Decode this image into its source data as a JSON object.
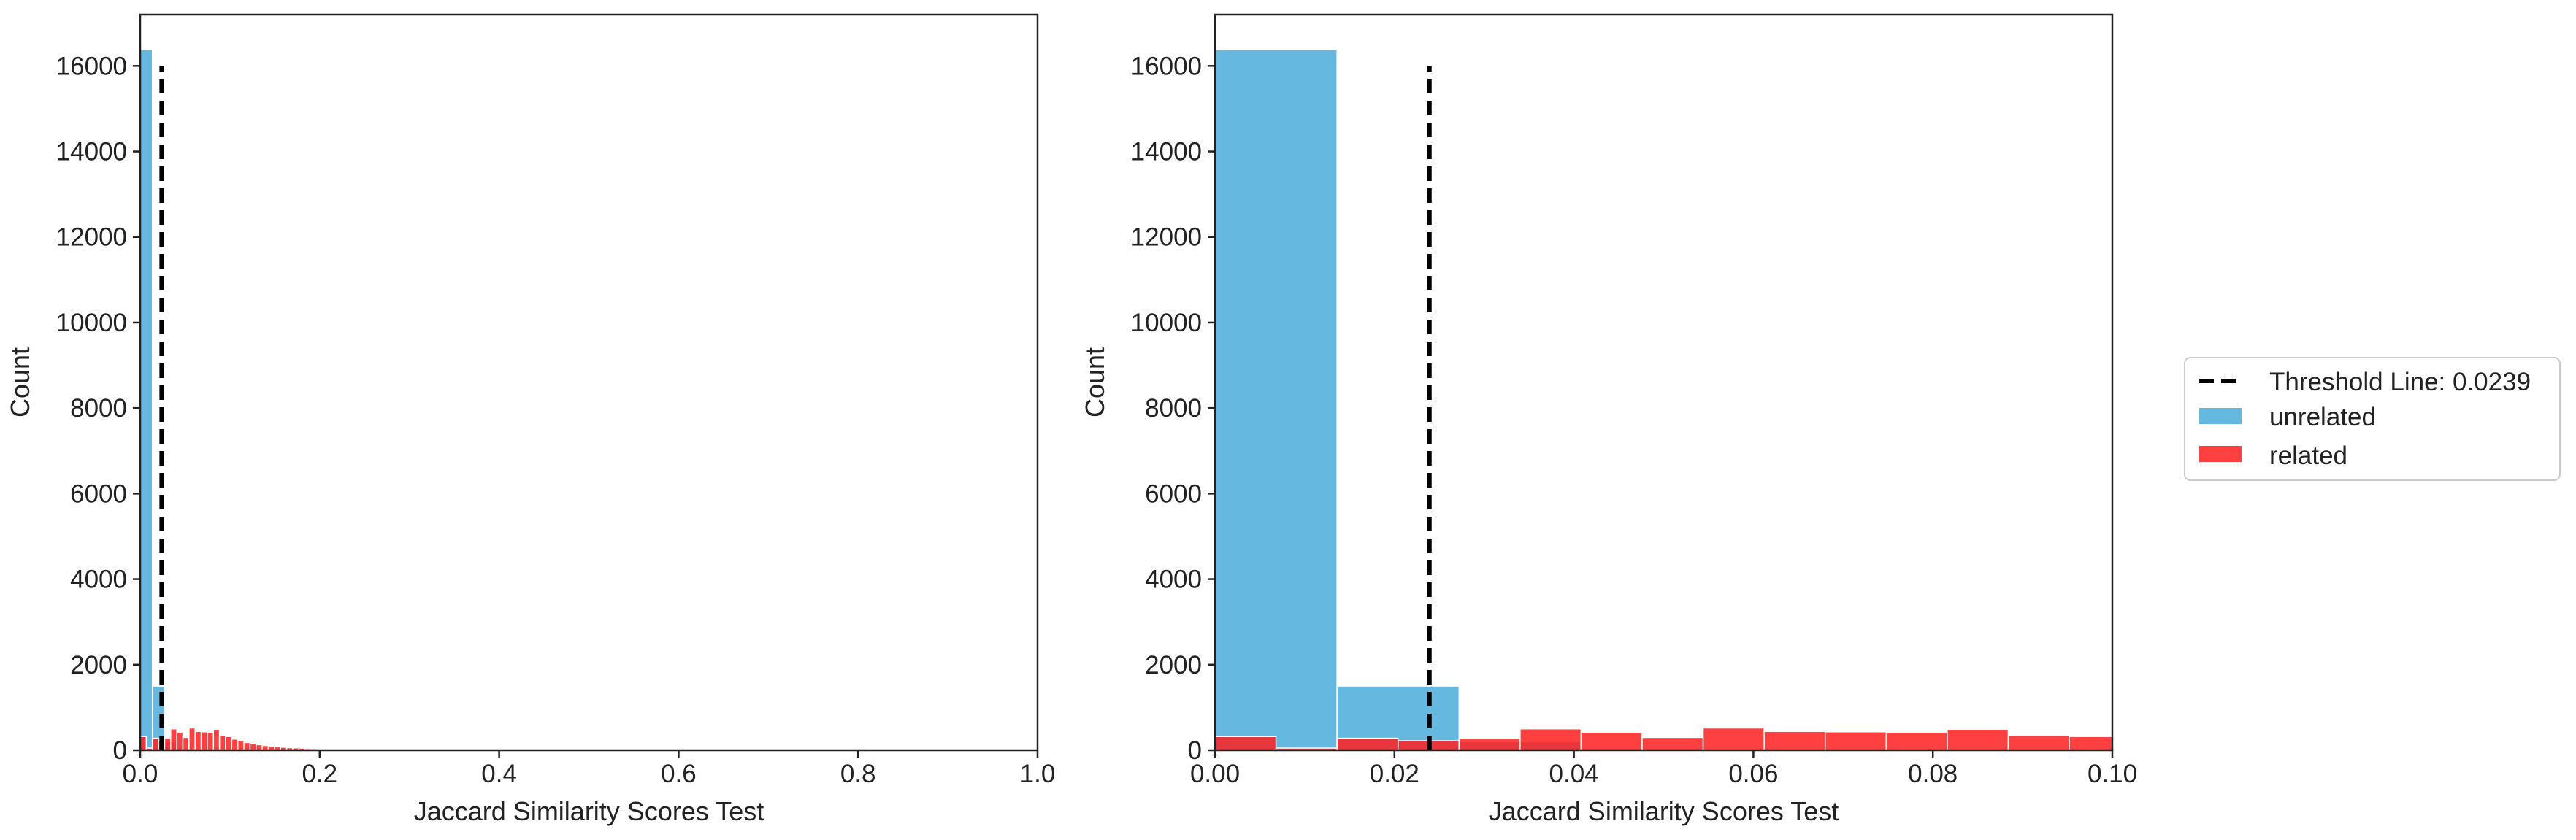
{
  "chart_data": [
    {
      "type": "histogram",
      "xlabel": "Jaccard Similarity Scores Test",
      "ylabel": "Count",
      "xlim": [
        0,
        1
      ],
      "ylim": [
        0,
        17200
      ],
      "xticks": [
        0.0,
        0.2,
        0.4,
        0.6,
        0.8,
        1.0
      ],
      "xtick_labels": [
        "0.0",
        "0.2",
        "0.4",
        "0.6",
        "0.8",
        "1.0"
      ],
      "yticks": [
        0,
        2000,
        4000,
        6000,
        8000,
        10000,
        12000,
        14000,
        16000
      ],
      "ytick_labels": [
        "0",
        "2000",
        "4000",
        "6000",
        "8000",
        "10000",
        "12000",
        "14000",
        "16000"
      ],
      "threshold": {
        "x": 0.0239,
        "y_top": 16000,
        "label": "Threshold Line: 0.0239"
      },
      "series": [
        {
          "name": "unrelated",
          "color": "#4aabdb",
          "bin_start": 0.0,
          "bin_width": 0.0136,
          "values": [
            16380,
            1500,
            200,
            40,
            10,
            5
          ]
        },
        {
          "name": "related",
          "color": "#ff1f1f",
          "bin_start": 0.0,
          "bin_width": 0.0068,
          "values": [
            320,
            50,
            280,
            220,
            280,
            500,
            420,
            300,
            520,
            440,
            430,
            420,
            490,
            350,
            320,
            260,
            230,
            180,
            160,
            130,
            110,
            90,
            80,
            70,
            60,
            55,
            50,
            40,
            35,
            30,
            25,
            20,
            18,
            16,
            14,
            12,
            10,
            10,
            8,
            8,
            6,
            6,
            5,
            5,
            4,
            4,
            3,
            3,
            2,
            2
          ]
        }
      ]
    },
    {
      "type": "histogram",
      "xlabel": "Jaccard Similarity Scores Test",
      "ylabel": "Count",
      "xlim": [
        0,
        0.1
      ],
      "ylim": [
        0,
        17200
      ],
      "xticks": [
        0.0,
        0.02,
        0.04,
        0.06,
        0.08,
        0.1
      ],
      "xtick_labels": [
        "0.00",
        "0.02",
        "0.04",
        "0.06",
        "0.08",
        "0.10"
      ],
      "yticks": [
        0,
        2000,
        4000,
        6000,
        8000,
        10000,
        12000,
        14000,
        16000
      ],
      "ytick_labels": [
        "0",
        "2000",
        "4000",
        "6000",
        "8000",
        "10000",
        "12000",
        "14000",
        "16000"
      ],
      "threshold": {
        "x": 0.0239,
        "y_top": 16000,
        "label": "Threshold Line: 0.0239"
      },
      "series": [
        {
          "name": "unrelated",
          "color": "#4aabdb",
          "bin_start": 0.0,
          "bin_width": 0.0136,
          "values": [
            16380,
            1500,
            200,
            40,
            10,
            5
          ]
        },
        {
          "name": "related",
          "color": "#ff1f1f",
          "bin_start": 0.0,
          "bin_width": 0.0068,
          "values": [
            320,
            50,
            280,
            220,
            280,
            500,
            420,
            300,
            520,
            440,
            430,
            420,
            490,
            350,
            320
          ]
        }
      ]
    }
  ],
  "legend": {
    "position": "right",
    "items": [
      {
        "label": "Threshold Line: 0.0239",
        "kind": "dashed-line",
        "color": "#000000"
      },
      {
        "label": "unrelated",
        "kind": "patch",
        "color": "#4aabdb"
      },
      {
        "label": "related",
        "kind": "patch",
        "color": "#ff1f1f"
      }
    ]
  }
}
